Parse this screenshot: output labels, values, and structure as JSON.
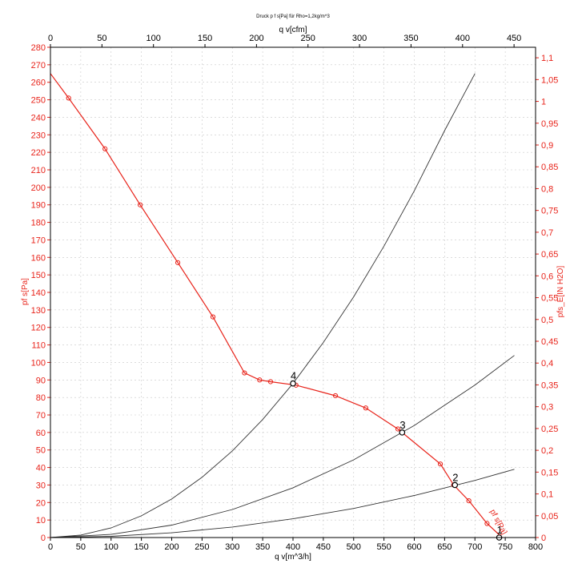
{
  "chart_data": {
    "type": "line",
    "title": "Druck p f s[Pa] für Rho=1,2kg/m^3",
    "xlabel_bottom": "q v[m^3/h]",
    "xlabel_top": "q v[cfm]",
    "ylabel_left": "pf s[Pa]",
    "ylabel_right": "pfs_E[IN H2O]",
    "curve_label": "pf s[Pa]",
    "xlim": [
      0,
      800
    ],
    "ylim": [
      0,
      280
    ],
    "x_ticks": [
      "0",
      "50",
      "100",
      "150",
      "200",
      "250",
      "300",
      "350",
      "400",
      "450",
      "500",
      "550",
      "600",
      "650",
      "700",
      "750",
      "800"
    ],
    "y_ticks": [
      "0",
      "10",
      "20",
      "30",
      "40",
      "50",
      "60",
      "70",
      "80",
      "90",
      "100",
      "110",
      "120",
      "130",
      "140",
      "150",
      "160",
      "170",
      "180",
      "190",
      "200",
      "210",
      "220",
      "230",
      "240",
      "250",
      "260",
      "270",
      "280"
    ],
    "top_ticks": [
      "0",
      "50",
      "100",
      "150",
      "200",
      "250",
      "300",
      "350",
      "400",
      "450"
    ],
    "right_ticks": [
      "0",
      "0,05",
      "0,1",
      "0,15",
      "0,2",
      "0,25",
      "0,3",
      "0,35",
      "0,4",
      "0,45",
      "0,5",
      "0,55",
      "0,6",
      "0,65",
      "0,7",
      "0,75",
      "0,8",
      "0,85",
      "0,9",
      "0,95",
      "1",
      "1,05",
      "1,1"
    ],
    "grid": true,
    "colors": {
      "fan_curve": "#e8231a",
      "system_curves": "#333333",
      "axis_red": "#e8231a"
    },
    "series": [
      {
        "role": "fan_curve",
        "x": [
          0,
          30,
          90,
          148,
          210,
          268,
          320,
          345,
          363,
          405,
          470,
          520,
          573,
          643,
          665,
          690,
          720,
          745
        ],
        "y": [
          265,
          251,
          222,
          190,
          157,
          126,
          94,
          90,
          89,
          87,
          81,
          74,
          62,
          42,
          30,
          21,
          8,
          0
        ],
        "markers": true
      },
      {
        "role": "system_curve",
        "x": [
          0,
          50,
          100,
          150,
          200,
          250,
          300,
          350,
          400,
          450,
          500,
          550,
          600,
          650,
          700
        ],
        "y": [
          0,
          1.4,
          5.5,
          12.4,
          22.0,
          34.4,
          49.5,
          67.4,
          88.0,
          111.4,
          137.5,
          166.4,
          198.0,
          232.4,
          265
        ]
      },
      {
        "role": "system_curve",
        "x": [
          0,
          100,
          200,
          300,
          400,
          500,
          600,
          700,
          765
        ],
        "y": [
          0,
          1.8,
          7.1,
          16.0,
          28.4,
          44.4,
          64.0,
          87.1,
          104
        ]
      },
      {
        "role": "system_curve",
        "x": [
          0,
          100,
          200,
          300,
          400,
          500,
          600,
          700,
          765
        ],
        "y": [
          0,
          0.7,
          2.7,
          6.0,
          10.7,
          16.6,
          24.0,
          32.6,
          39
        ]
      }
    ],
    "operating_points": [
      {
        "label": "1",
        "x": 740,
        "y": 0
      },
      {
        "label": "2",
        "x": 667,
        "y": 30
      },
      {
        "label": "3",
        "x": 580,
        "y": 60
      },
      {
        "label": "4",
        "x": 400,
        "y": 88
      }
    ]
  }
}
